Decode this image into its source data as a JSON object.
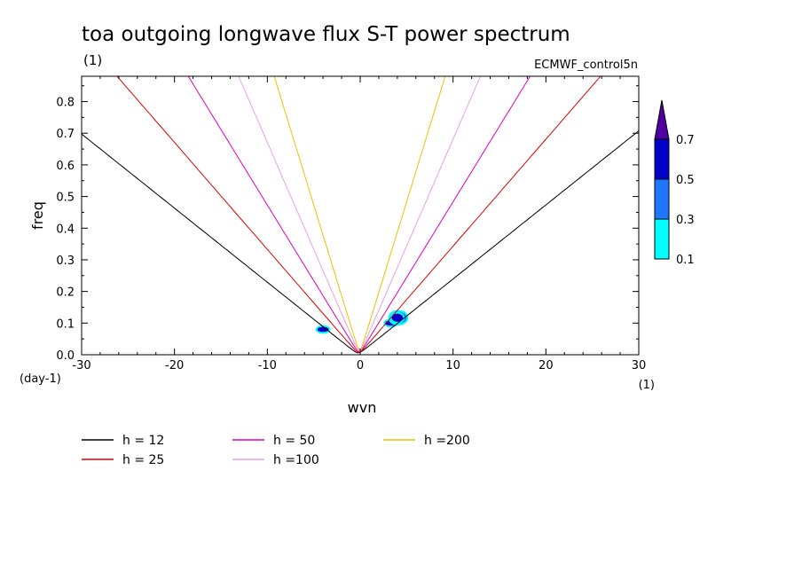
{
  "chart_data": {
    "type": "line",
    "title": "toa outgoing longwave flux S-T power spectrum",
    "subtitle_left": "(1)",
    "subtitle_right": "ECMWF_control5n",
    "xlabel": "wvn",
    "ylabel": "freq",
    "x_unit": "(1)",
    "y_unit": "(day-1)",
    "xlim": [
      -30,
      30
    ],
    "ylim": [
      0,
      0.88
    ],
    "x_ticks": [
      -30,
      -20,
      -10,
      0,
      10,
      20,
      30
    ],
    "x_tick_labels": [
      "-30",
      "-20",
      "-10",
      "0",
      "10",
      "20",
      "30"
    ],
    "y_ticks": [
      0,
      0.1,
      0.2,
      0.3,
      0.4,
      0.5,
      0.6,
      0.7,
      0.8
    ],
    "y_tick_labels": [
      "0.0",
      "0.1",
      "0.2",
      "0.3",
      "0.4",
      "0.5",
      "0.6",
      "0.7",
      "0.8"
    ],
    "series": [
      {
        "name": "h = 12",
        "color": "#000000",
        "h": 12
      },
      {
        "name": "h = 25",
        "color": "#e00000",
        "h": 25
      },
      {
        "name": "h = 50",
        "color": "#e000c0",
        "h": 50
      },
      {
        "name": "h =100",
        "color": "#e8a0e8",
        "h": 100
      },
      {
        "name": "h =200",
        "color": "#f0c000",
        "h": 200
      }
    ],
    "colorbar": {
      "levels": [
        "0.1",
        "0.3",
        "0.5",
        "0.7"
      ],
      "colors": [
        "#00ffff",
        "#1e78ff",
        "#0000c8",
        "#5000a0"
      ]
    },
    "contours": [
      {
        "x": -4.0,
        "y": 0.08,
        "rx": 0.6,
        "ry": 0.008,
        "level": 0.5
      },
      {
        "x": 3.3,
        "y": 0.1,
        "rx": 0.6,
        "ry": 0.008,
        "level": 0.5
      },
      {
        "x": 4.1,
        "y": 0.117,
        "rx": 0.9,
        "ry": 0.019,
        "level": 0.3
      },
      {
        "x": 4.0,
        "y": 0.117,
        "rx": 0.6,
        "ry": 0.013,
        "level": 0.7
      }
    ]
  }
}
